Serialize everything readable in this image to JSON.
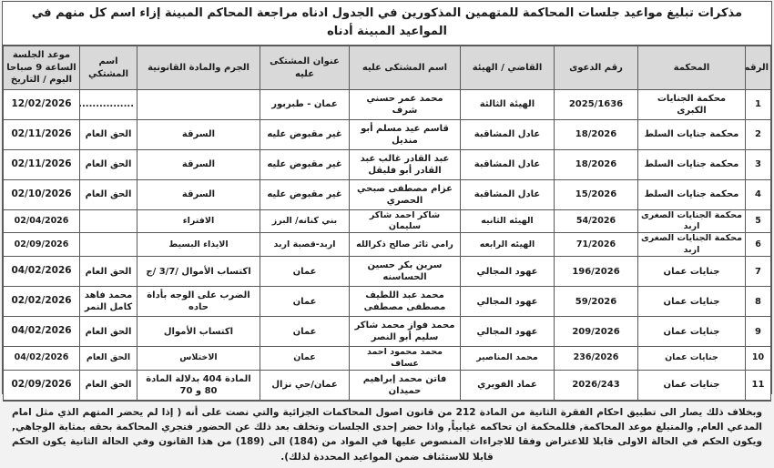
{
  "document": {
    "title": "مذكرات تبليغ مواعيد جلسات المحاكمة للمتهمين المذكورين في الجدول ادناه مراجعة المحاكم المبينة إزاء اسم كل منهم في المواعيد المبينة أدناه",
    "footer_note": "وبخلاف ذلك يصار الى تطبيق احكام الفقرة الثانية من المادة 212 من قانون اصول المحاكمات الجزائية والتي نصت على أنه ( إذا لم يحضر المتهم الذي مثل امام المدعي العام, والمتبلغ موعد المحاكمة, فللمحكمة ان تحاكمه غيابياً, واذا حضر إحدى الجلسات وتخلف بعد ذلك عن الحضور فتجري المحاكمة بحقه بمثابة الوجاهي, ويكون الحكم في الحالة الاولى قابلا للاعتراض وفقا للاجراءات المنصوص عليها في المواد من (184) الى (189) من هذا القانون وفي الحالة الثانية يكون الحكم قابلا للاستئناف ضمن المواعيد المحددة لذلك)."
  },
  "colors": {
    "header_bg": "#d9d9d9",
    "border": "#5a5a5a",
    "text": "#1c1c1c"
  },
  "table": {
    "fields": [
      "num",
      "court",
      "case_no",
      "judge",
      "defendant",
      "address",
      "crime",
      "complainant",
      "date"
    ],
    "headers": [
      "الرقم",
      "المحكمة",
      "رقم الدعوى",
      "القاضي / الهيئة",
      "اسم المشتكى عليه",
      "عنوان المشتكى عليه",
      "الجرم والمادة القانونية",
      "اسم المشتكي",
      "موعد الجلسة\nالساعة 9 صباحا\nاليوم / التاريخ"
    ],
    "rows": [
      {
        "num": "1",
        "court": "محكمة الجنايات الكبرى",
        "case_no": "2025/1636",
        "judge": "الهيئة الثالثة",
        "defendant": "محمد عمر حسني شرف",
        "address": "عمان - طبربور",
        "crime": "",
        "complainant": ".................",
        "date": "12/02/2026"
      },
      {
        "num": "2",
        "court": "محكمة جنايات السلط",
        "case_no": "18/2026",
        "judge": "عادل المشاقبة",
        "defendant": "قاسم عيد مسلم أبو منديل",
        "address": "غير مقبوض عليه",
        "crime": "السرقة",
        "complainant": "الحق العام",
        "date": "02/11/2026"
      },
      {
        "num": "3",
        "court": "محكمة جنايات السلط",
        "case_no": "18/2026",
        "judge": "عادل المشاقبة",
        "defendant": "عبد القادر غالب عبد القادر أبو فليقل",
        "address": "غير مقبوض عليه",
        "crime": "السرقة",
        "complainant": "الحق العام",
        "date": "02/11/2026"
      },
      {
        "num": "4",
        "court": "محكمة جنايات السلط",
        "case_no": "15/2026",
        "judge": "عادل المشاقبة",
        "defendant": "عزام مصطفى صبحي الحصري",
        "address": "غير مقبوض عليه",
        "crime": "السرقة",
        "complainant": "الحق العام",
        "date": "02/10/2026"
      },
      {
        "num": "5",
        "court": "محكمة الجنايات الصغرى اربد",
        "case_no": "54/2026",
        "judge": "الهيئه الثانيه",
        "defendant": "شاكر احمد شاكر سليمان",
        "address": "بني كنانه/ البرز",
        "crime": "الافتراء",
        "complainant": "",
        "date": "02/04/2026"
      },
      {
        "num": "6",
        "court": "محكمة الجنايات الصغرى اربد",
        "case_no": "71/2026",
        "judge": "الهيئه الرابعه",
        "defendant": "رامي ثائر صالح ذكرالله",
        "address": "اربد-قصبة اربد",
        "crime": "الايذاء البسيط",
        "complainant": "",
        "date": "02/09/2026"
      },
      {
        "num": "7",
        "court": "جنايات عمان",
        "case_no": "196/2026",
        "judge": "عهود المجالي",
        "defendant": "سرين بكر حسين الحساسنه",
        "address": "عمان",
        "crime": "اكتساب الأموال /3/7 /ج",
        "complainant": "الحق العام",
        "date": "04/02/2026"
      },
      {
        "num": "8",
        "court": "جنايات عمان",
        "case_no": "59/2026",
        "judge": "عهود المجالي",
        "defendant": "محمد عبد اللطيف مصطفى مصطفى",
        "address": "عمان",
        "crime": "الضرب على الوجه بأداة حاده",
        "complainant": "محمد فاهد كامل النمر",
        "date": "02/02/2026"
      },
      {
        "num": "9",
        "court": "جنايات عمان",
        "case_no": "209/2026",
        "judge": "عهود المجالي",
        "defendant": "محمد فواز محمد شاكر سليم أبو النصر",
        "address": "عمان",
        "crime": "اكتساب الأموال",
        "complainant": "الحق العام",
        "date": "04/02/2026"
      },
      {
        "num": "10",
        "court": "جنايات عمان",
        "case_no": "236/2026",
        "judge": "محمد المناصير",
        "defendant": "محمد محمود احمد عساف",
        "address": "عمان",
        "crime": "الاختلاس",
        "complainant": "الحق العام",
        "date": "04/02/2026"
      },
      {
        "num": "11",
        "court": "جنايات عمان",
        "case_no": "2026/243",
        "judge": "عماد الفويري",
        "defendant": "فاتن محمد إبراهيم حميدان",
        "address": "عمان/حي نزال",
        "crime": "المادة 404 بدلالة المادة 80 و 70",
        "complainant": "الحق العام",
        "date": "02/09/2026"
      }
    ]
  }
}
